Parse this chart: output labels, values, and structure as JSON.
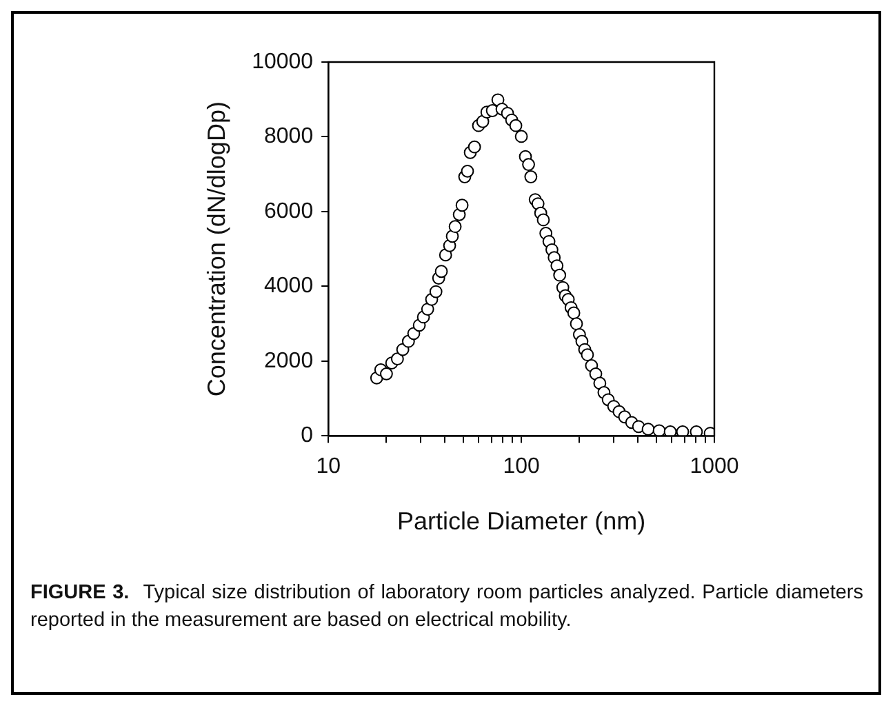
{
  "chart_data": {
    "type": "scatter",
    "xlabel": "Particle Diameter (nm)",
    "ylabel": "Concentration (dN/dlogDp)",
    "log": "x",
    "xlim": [
      10,
      1000
    ],
    "ylim": [
      0,
      10000
    ],
    "xticks": [
      10,
      {
        "value": 20,
        "label": null
      },
      {
        "value": 30,
        "label": null
      },
      {
        "value": 40,
        "label": null
      },
      {
        "value": 50,
        "label": null
      },
      {
        "value": 60,
        "label": null
      },
      {
        "value": 70,
        "label": null
      },
      {
        "value": 80,
        "label": null
      },
      {
        "value": 90,
        "label": null
      },
      100,
      {
        "value": 200,
        "label": null
      },
      {
        "value": 300,
        "label": null
      },
      {
        "value": 400,
        "label": null
      },
      {
        "value": 500,
        "label": null
      },
      {
        "value": 600,
        "label": null
      },
      {
        "value": 700,
        "label": null
      },
      {
        "value": 800,
        "label": null
      },
      {
        "value": 900,
        "label": null
      },
      1000
    ],
    "yticks": [
      0,
      2000,
      4000,
      6000,
      8000,
      10000
    ],
    "grid": false,
    "legend": false,
    "marker": "circle",
    "series": [
      {
        "color": "#000000",
        "x": [
          17.8,
          18.7,
          20.0,
          21.3,
          22.8,
          24.3,
          26.0,
          27.7,
          29.6,
          31.1,
          32.7,
          34.3,
          36.1,
          37.3,
          38.5,
          40.5,
          42.5,
          43.9,
          45.4,
          47.7,
          49.3,
          50.9,
          52.6,
          54.4,
          57.2,
          60.0,
          63.1,
          66.3,
          70.8,
          75.6,
          79.4,
          84.8,
          89.1,
          93.6,
          100,
          105,
          109,
          112,
          118,
          122,
          126,
          130,
          134,
          139,
          144,
          148,
          153,
          158,
          164,
          169,
          175,
          181,
          187,
          193,
          200,
          206,
          213,
          220,
          231,
          243,
          255,
          268,
          282,
          301,
          321,
          343,
          373,
          405,
          454,
          518,
          591,
          685,
          807,
          952
        ],
        "values": [
          1550,
          1770,
          1660,
          1950,
          2060,
          2310,
          2530,
          2740,
          2960,
          3180,
          3390,
          3650,
          3860,
          4220,
          4400,
          4840,
          5090,
          5340,
          5600,
          5920,
          6170,
          6930,
          7080,
          7580,
          7730,
          8300,
          8410,
          8660,
          8700,
          8990,
          8740,
          8630,
          8450,
          8300,
          8010,
          7470,
          7260,
          6930,
          6320,
          6210,
          5960,
          5780,
          5420,
          5200,
          4980,
          4770,
          4550,
          4300,
          3970,
          3750,
          3650,
          3430,
          3290,
          3000,
          2710,
          2530,
          2310,
          2170,
          1880,
          1660,
          1410,
          1160,
          970,
          790,
          650,
          510,
          360,
          250,
          180,
          140,
          110,
          110,
          110,
          70
        ]
      }
    ],
    "annotations": [
      "FIGURE 3.",
      "Typical size distribution of laboratory room particles analyzed. Particle diameters reported in the measurement are based on electrical mobility."
    ]
  }
}
